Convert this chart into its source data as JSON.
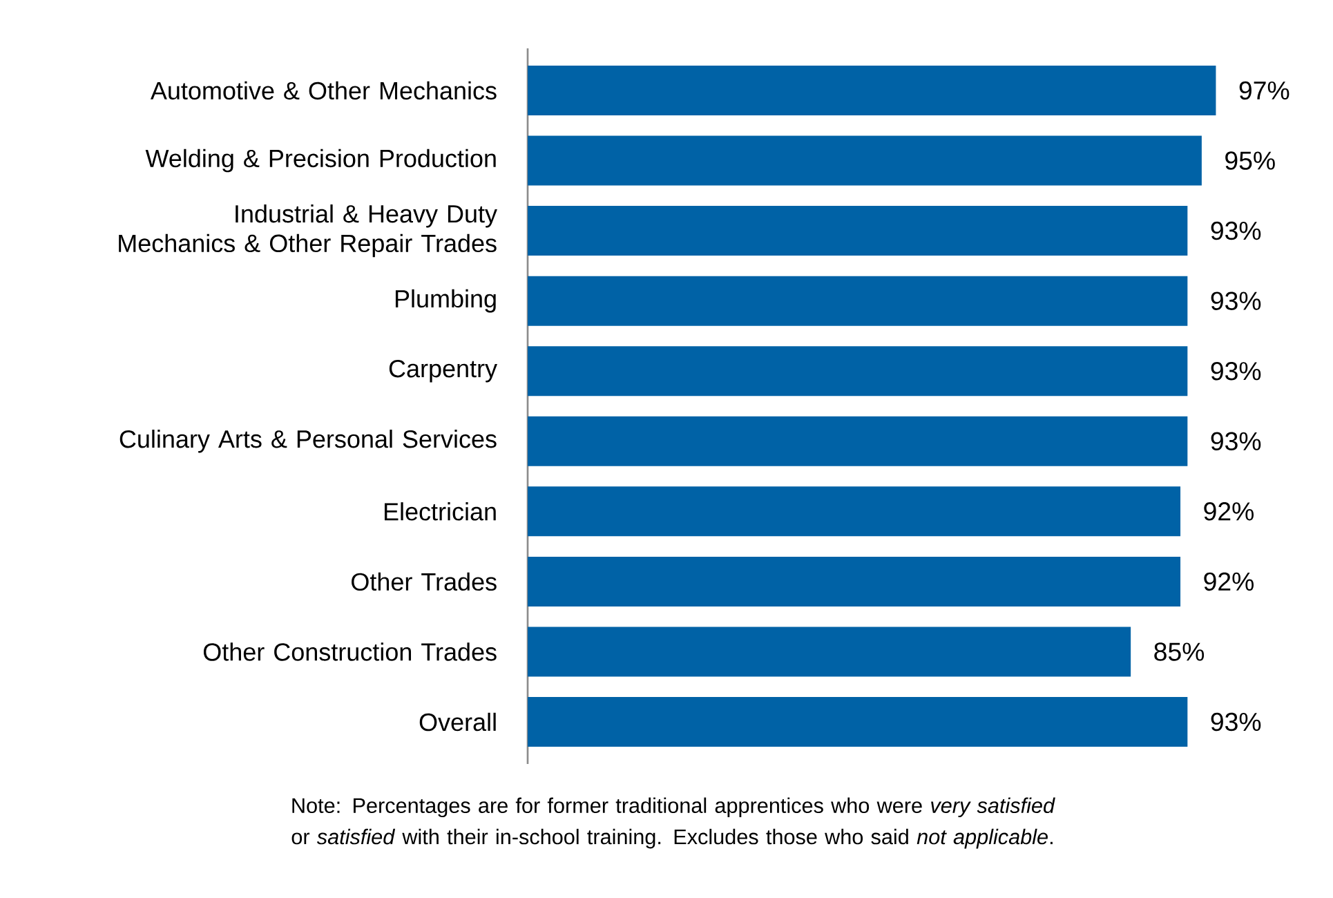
{
  "chart_data": {
    "type": "bar",
    "orientation": "horizontal",
    "categories": [
      "Automotive & Other Mechanics",
      "Welding & Precision Production",
      "Industrial & Heavy Duty Mechanics & Other Repair Trades",
      "Plumbing",
      "Carpentry",
      "Culinary Arts & Personal Services",
      "Electrician",
      "Other Trades",
      "Other Construction Trades",
      "Overall"
    ],
    "values": [
      97,
      95,
      93,
      93,
      93,
      93,
      92,
      92,
      85,
      93
    ],
    "value_labels": [
      "97%",
      "95%",
      "93%",
      "93%",
      "93%",
      "93%",
      "92%",
      "92%",
      "85%",
      "93%"
    ],
    "color": "#0062a6",
    "tick_labels": "y",
    "annotations": [
      "Note: Percentages are for former traditional apprentices who were *very satisfied* or *satisfied*  with their in-school training. Excludes those who said *not applicable*."
    ]
  }
}
